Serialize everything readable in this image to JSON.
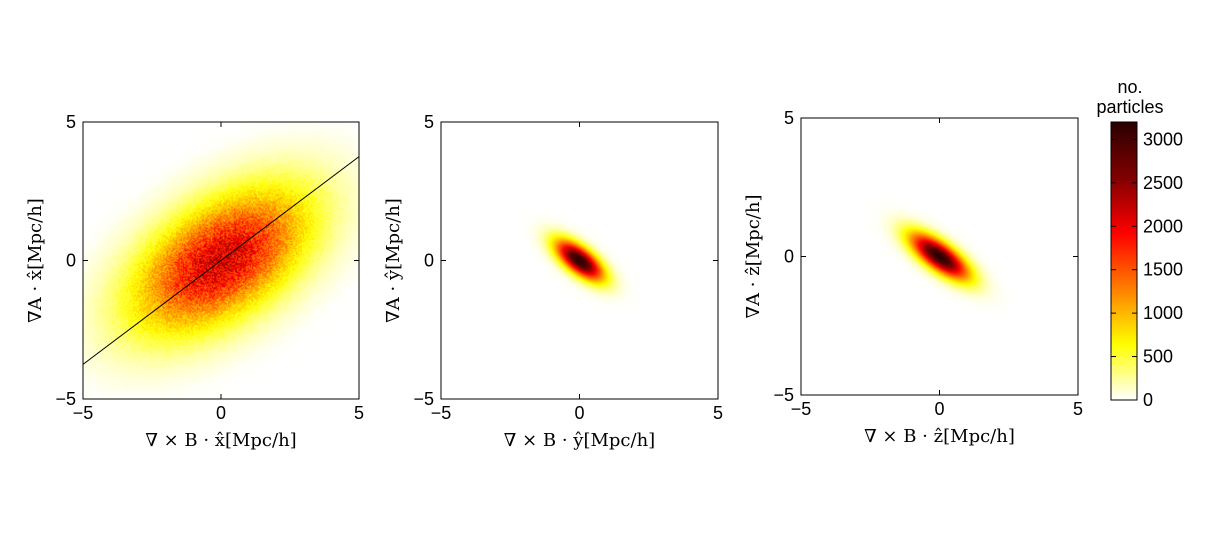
{
  "colorbar": {
    "title_lines": [
      "no.",
      "particles"
    ],
    "ticks": [
      0,
      500,
      1000,
      1500,
      2000,
      2500,
      3000
    ],
    "range": [
      0,
      3200
    ],
    "colormap": "hot (reversed)",
    "colormap_stops": [
      "#ffffff",
      "#ffff00",
      "#ff7f00",
      "#ff0000",
      "#800000",
      "#2a0000"
    ]
  },
  "chart_data": [
    {
      "type": "heatmap",
      "xlabel": "∇ × B · x̂[Mpc/h]",
      "ylabel": "∇A · x̂[Mpc/h]",
      "xlim": [
        -5,
        5
      ],
      "ylim": [
        -5,
        5
      ],
      "xticks": [
        -5,
        0,
        5
      ],
      "yticks": [
        -5,
        0,
        5
      ],
      "distribution": {
        "center": [
          0,
          0
        ],
        "major_sigma": 2.4,
        "minor_sigma": 1.3,
        "angle_deg": 34,
        "peak": 2100
      },
      "fit_line": {
        "slope": 0.75,
        "intercept": 0
      }
    },
    {
      "type": "heatmap",
      "xlabel": "∇ × B · ŷ[Mpc/h]",
      "ylabel": "∇A · ŷ[Mpc/h]",
      "xlim": [
        -5,
        5
      ],
      "ylim": [
        -5,
        5
      ],
      "xticks": [
        -5,
        0,
        5
      ],
      "yticks": [
        -5,
        0,
        5
      ],
      "distribution": {
        "center": [
          0,
          0
        ],
        "major_sigma": 0.7,
        "minor_sigma": 0.3,
        "angle_deg": -38,
        "peak": 3200
      }
    },
    {
      "type": "heatmap",
      "xlabel": "∇ × B · ẑ[Mpc/h]",
      "ylabel": "∇A · ẑ[Mpc/h]",
      "xlim": [
        -5,
        5
      ],
      "ylim": [
        -5,
        5
      ],
      "xticks": [
        -5,
        0,
        5
      ],
      "yticks": [
        -5,
        0,
        5
      ],
      "distribution": {
        "center": [
          0,
          0
        ],
        "major_sigma": 0.85,
        "minor_sigma": 0.32,
        "angle_deg": -36,
        "peak": 3200
      }
    }
  ]
}
